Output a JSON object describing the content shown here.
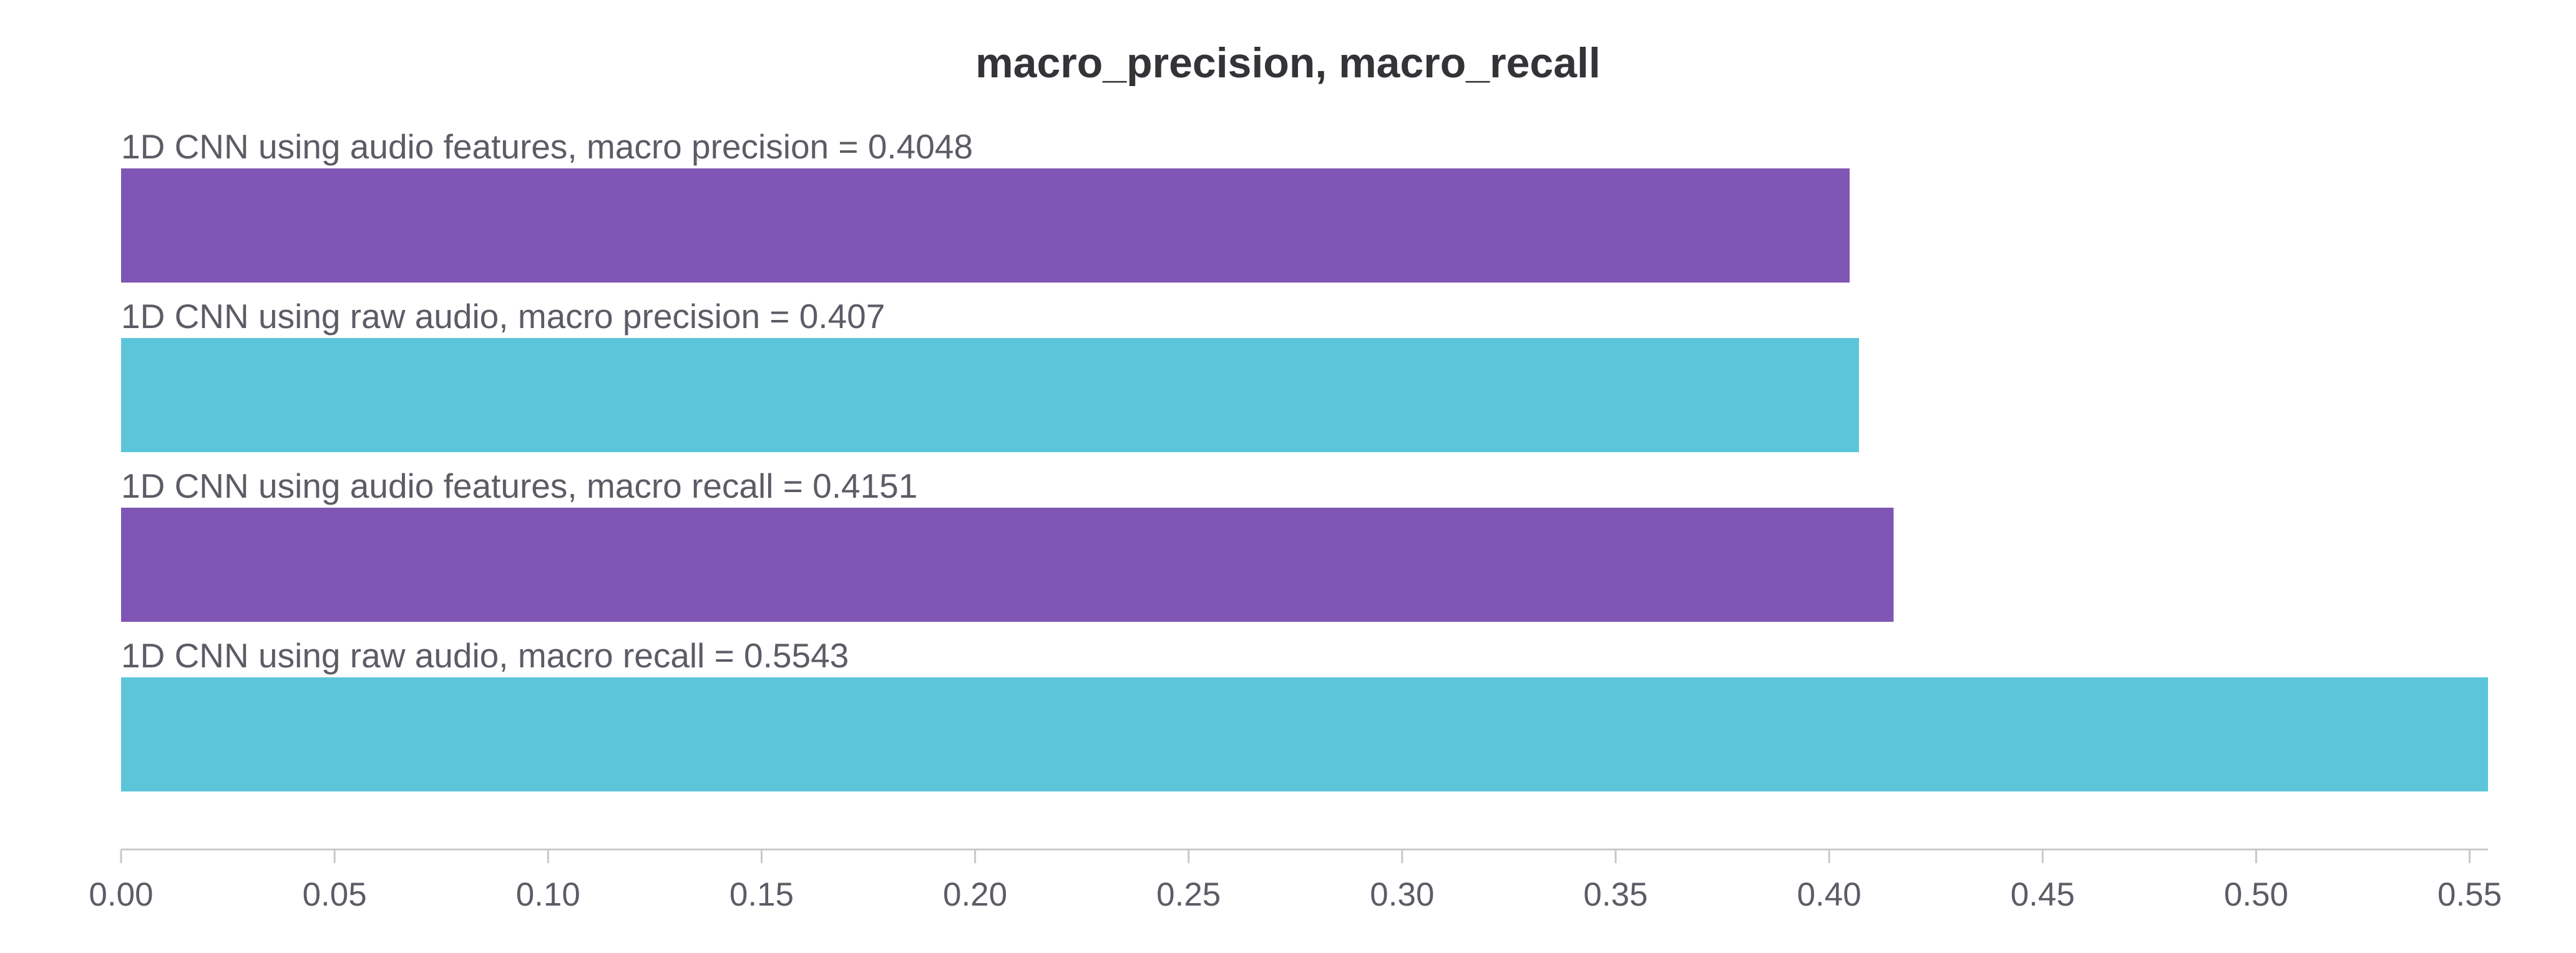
{
  "chart_data": {
    "type": "bar",
    "orientation": "horizontal",
    "title": "macro_precision, macro_recall",
    "bars": [
      {
        "label": "1D CNN using audio features, macro precision = 0.4048",
        "value": 0.4048,
        "color": "#7f56b4"
      },
      {
        "label": "1D CNN using raw audio, macro precision = 0.407",
        "value": 0.407,
        "color": "#5cc5da"
      },
      {
        "label": "1D CNN using audio features, macro recall = 0.4151",
        "value": 0.4151,
        "color": "#7f56b4"
      },
      {
        "label": "1D CNN using raw audio, macro recall = 0.5543",
        "value": 0.5543,
        "color": "#5cc5da"
      }
    ],
    "xlim": [
      0,
      0.5543
    ],
    "xticks": [
      "0.00",
      "0.05",
      "0.10",
      "0.15",
      "0.20",
      "0.25",
      "0.30",
      "0.35",
      "0.40",
      "0.45",
      "0.50",
      "0.55"
    ],
    "grid": false
  }
}
